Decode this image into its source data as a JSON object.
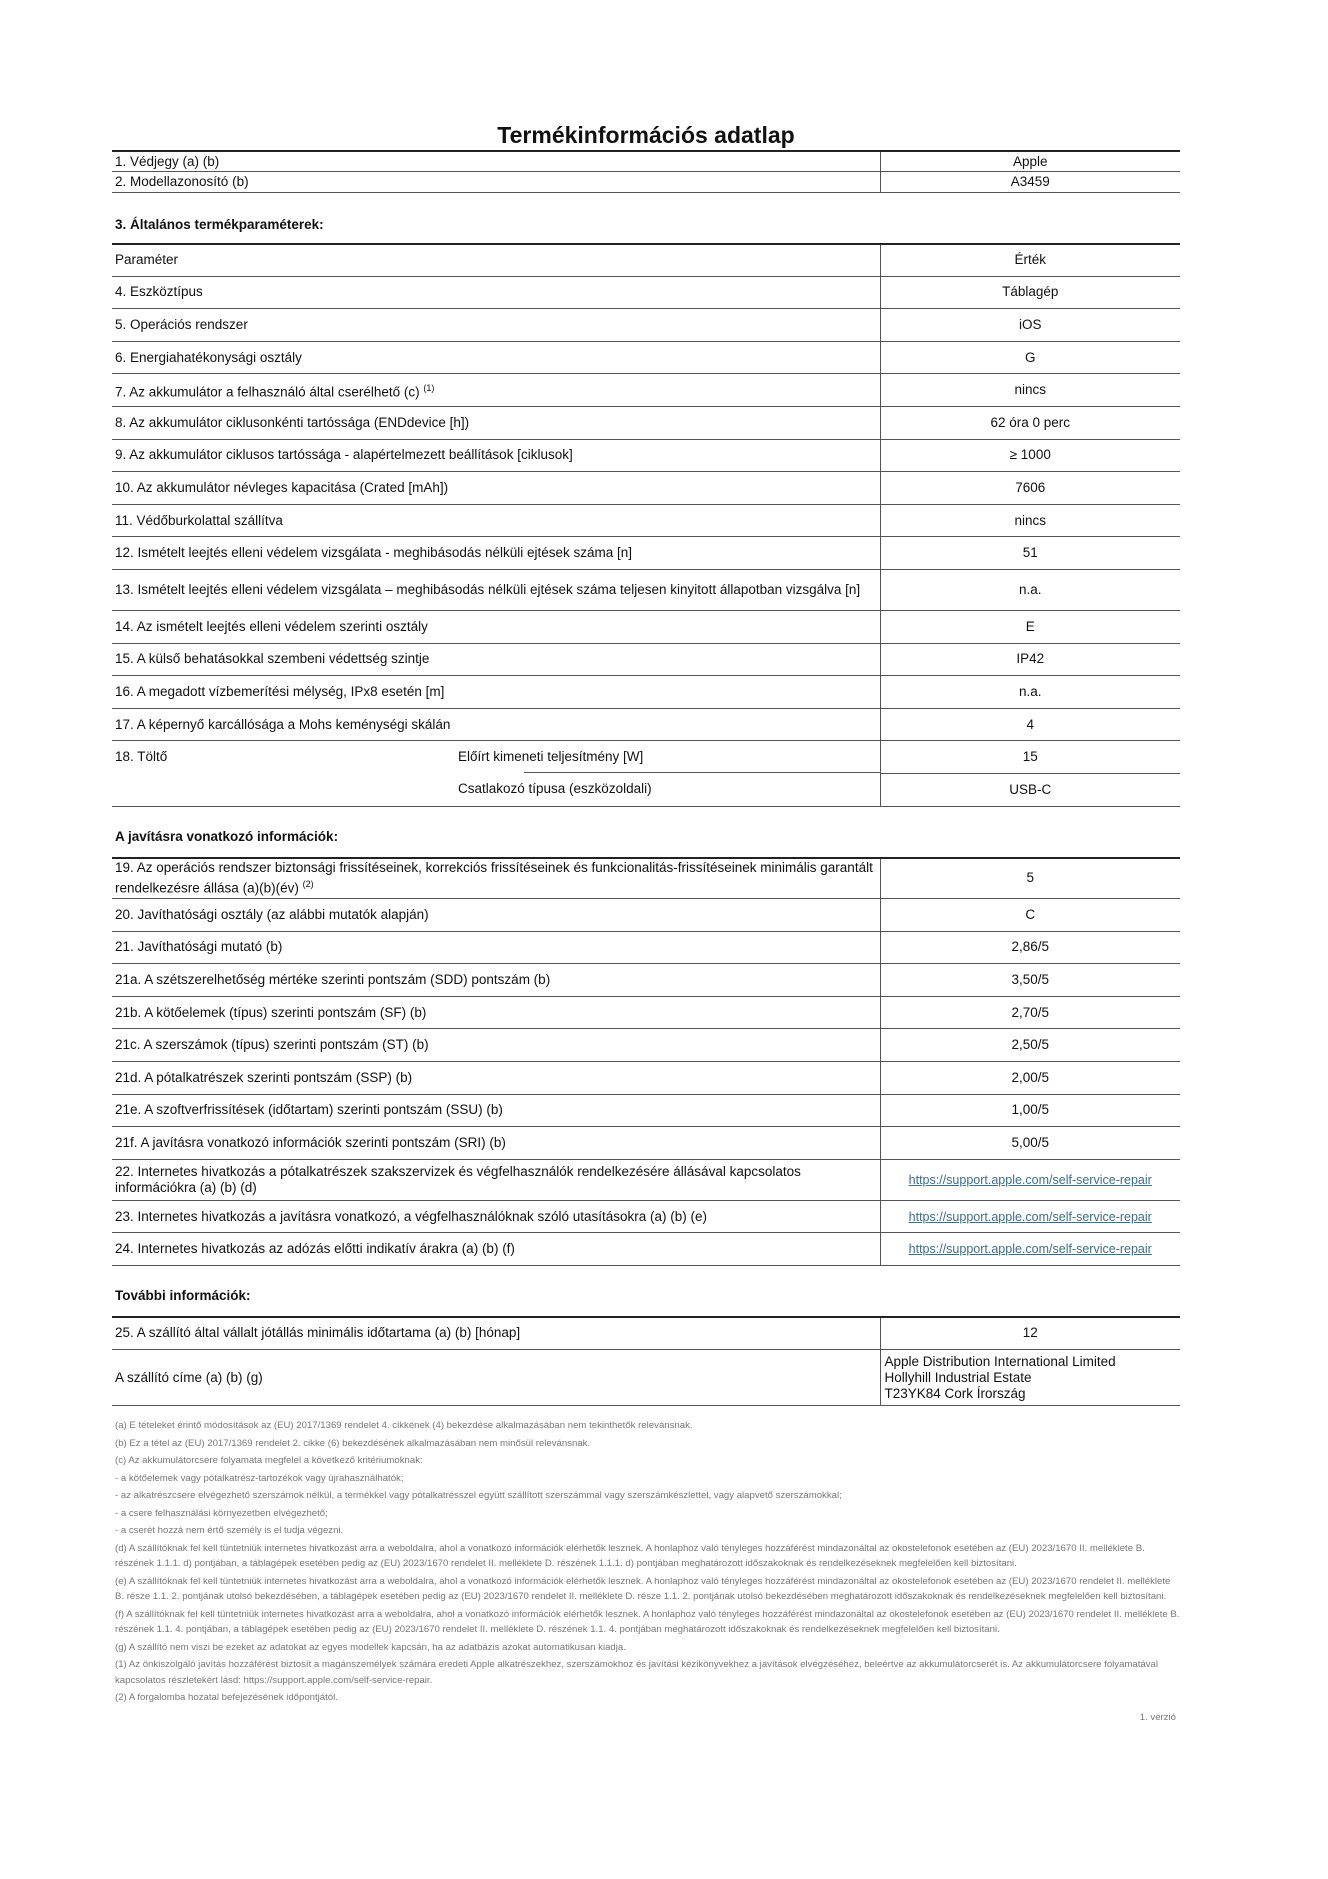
{
  "title": "Termékinformációs adatlap",
  "header_rows": [
    {
      "label": "1. Védjegy (a) (b)",
      "value": "Apple"
    },
    {
      "label": "2. Modellazonosító (b)",
      "value": "A3459"
    }
  ],
  "section3": {
    "heading": "3. Általános termékparaméterek:",
    "col_param": "Paraméter",
    "col_value": "Érték",
    "rows": [
      {
        "label": "4. Eszköztípus",
        "value": "Táblagép"
      },
      {
        "label": "5. Operációs rendszer",
        "value": "iOS"
      },
      {
        "label": "6. Energiahatékonysági osztály",
        "value": "G"
      },
      {
        "label": "7. Az akkumulátor a felhasználó által cserélhető (c)",
        "sup": "(1)",
        "value": "nincs"
      },
      {
        "label": "8. Az akkumulátor ciklusonkénti tartóssága (ENDdevice [h])",
        "value": "62 óra 0 perc"
      },
      {
        "label": "9. Az akkumulátor ciklusos tartóssága - alapértelmezett beállítások [ciklusok]",
        "value": "≥ 1000"
      },
      {
        "label": "10. Az akkumulátor névleges kapacitása (Crated [mAh])",
        "value": "7606"
      },
      {
        "label": "11. Védőburkolattal szállítva",
        "value": "nincs"
      },
      {
        "label": "12. Ismételt leejtés elleni védelem vizsgálata - meghibásodás nélküli ejtések száma [n]",
        "value": "51"
      },
      {
        "label": "13. Ismételt leejtés elleni védelem vizsgálata – meghibásodás nélküli ejtések száma teljesen kinyitott állapotban vizsgálva [n]",
        "value": "n.a."
      },
      {
        "label": "14. Az ismételt leejtés elleni védelem szerinti osztály",
        "value": "E"
      },
      {
        "label": "15. A külső behatásokkal szembeni védettség szintje",
        "value": "IP42"
      },
      {
        "label": "16.  A megadott vízbemerítési mélység, IPx8 esetén [m]",
        "value": "n.a."
      },
      {
        "label": "17. A képernyő karcállósága a Mohs keménységi skálán",
        "value": "4"
      }
    ],
    "charger": {
      "label": "18. Töltő",
      "sub": [
        {
          "label": "Előírt kimeneti teljesítmény [W]",
          "value": "15"
        },
        {
          "label": "Csatlakozó típusa (eszközoldali)",
          "value": "USB-C"
        }
      ]
    }
  },
  "repair": {
    "heading": "A javításra vonatkozó információk:",
    "rows": [
      {
        "label": "19. Az operációs rendszer biztonsági frissítéseinek, korrekciós frissítéseinek és funkcionalitás-frissítéseinek minimális garantált rendelkezésre állása (a)(b)(év)",
        "sup": "(2)",
        "value": "5"
      },
      {
        "label": "20. Javíthatósági osztály (az alábbi mutatók alapján)",
        "value": "C"
      },
      {
        "label": "21. Javíthatósági mutató (b)",
        "value": "2,86/5"
      },
      {
        "label": "21a. A szétszerelhetőség mértéke szerinti pontszám (SDD) pontszám (b)",
        "value": "3,50/5"
      },
      {
        "label": "21b. A kötőelemek (típus) szerinti pontszám (SF) (b)",
        "value": "2,70/5"
      },
      {
        "label": "21c. A szerszámok (típus) szerinti pontszám (ST) (b)",
        "value": "2,50/5"
      },
      {
        "label": "21d. A pótalkatrészek szerinti pontszám (SSP) (b)",
        "value": "2,00/5"
      },
      {
        "label": "21e. A szoftverfrissítések (időtartam) szerinti pontszám (SSU) (b)",
        "value": "1,00/5"
      },
      {
        "label": "21f. A javításra vonatkozó információk szerinti pontszám (SRI) (b)",
        "value": "5,00/5"
      }
    ],
    "links": [
      {
        "label": "22. Internetes hivatkozás a pótalkatrészek szakszervizek és végfelhasználók rendelkezésére állásával kapcsolatos információkra (a) (b) (d)",
        "value": "https://support.apple.com/self-service-repair"
      },
      {
        "label": "23. Internetes hivatkozás a javításra vonatkozó, a végfelhasználóknak szóló utasításokra (a) (b) (e)",
        "value": "https://support.apple.com/self-service-repair"
      },
      {
        "label": "24. Internetes hivatkozás az adózás előtti indikatív árakra (a) (b) (f)",
        "value": "https://support.apple.com/self-service-repair"
      }
    ]
  },
  "more": {
    "heading": "További információk:",
    "warranty": {
      "label": "25. A szállító által vállalt jótállás minimális időtartama (a) (b) [hónap]",
      "value": "12"
    },
    "address": {
      "label": "A szállító címe (a) (b) (g)",
      "lines": [
        "Apple Distribution International Limited",
        "Hollyhill Industrial Estate",
        "T23YK84 Cork Írország"
      ]
    }
  },
  "footnotes": [
    "(a) E tételeket érintő módosítások az (EU) 2017/1369 rendelet 4. cikkének (4) bekezdése alkalmazásában nem tekinthetők relevánsnak.",
    "(b) Ez a tétel az (EU) 2017/1369 rendelet 2. cikke (6) bekezdésének alkalmazásában nem minősül relevánsnak.",
    "(c) Az akkumulátorcsere folyamata megfelel a következő kritériumoknak:",
    "- a kötőelemek vagy pótalkatrész-tartozékok vagy újrahasználhatók;",
    "- az alkatrészcsere elvégezhető szerszámok nélkül, a termékkel vagy pótalkatrésszel együtt szállított szerszámmal vagy szerszámkészlettel, vagy alapvető szerszámokkal;",
    "- a csere felhasználási környezetben elvégezhető;",
    "- a cserét hozzá nem értő személy is el tudja végezni.",
    "(d) A szállítóknak fel kell tüntetniük internetes hivatkozást arra a weboldalra, ahol a vonatkozó információk elérhetők lesznek. A honlaphoz való tényleges hozzáférést mindazonáltal az okostelefonok esetében az (EU) 2023/1670 II. melléklete B. részének 1.1.1. d) pontjában, a táblagépek esetében pedig az (EU) 2023/1670 rendelet II. melléklete D. részének 1.1.1. d) pontjában meghatározott időszakoknak és rendelkezéseknek megfelelően kell biztosítani.",
    "(e) A szállítóknak fel kell tüntetniük internetes hivatkozást arra a weboldalra, ahol a vonatkozó információk elérhetők lesznek. A honlaphoz való tényleges hozzáférést mindazonáltal az okostelefonok esetében az (EU) 2023/1670 rendelet II. melléklete B. része 1.1. 2. pontjának utolsó bekezdésében, a táblagépek esetében pedig az (EU) 2023/1670 rendelet II. melléklete D. része 1.1. 2. pontjának utolsó bekezdésében meghatározott időszakoknak és rendelkezéseknek megfelelően kell biztosítani.",
    "(f) A szállítóknak fel kell tüntetniük internetes hivatkozást arra a weboldalra, ahol a vonatkozó információk elérhetők lesznek. A honlaphoz való tényleges hozzáférést mindazonáltal az okostelefonok esetében az (EU) 2023/1670 rendelet II. melléklete B. részének 1.1. 4. pontjában, a táblagépek esetében pedig az (EU) 2023/1670 rendelet II. melléklete D. részének 1.1. 4. pontjában meghatározott időszakoknak és rendelkezéseknek megfelelően kell biztosítani.",
    "(g) A szállító nem viszi be ezeket az adatokat az egyes modellek kapcsán, ha az adatbázis azokat automatikusan kiadja.",
    "(1) Az önkiszolgáló javítás hozzáférést biztosít a magánszemélyek számára eredeti Apple alkatrészekhez, szerszámokhoz és javítási kézikönyvekhez a javítások elvégzéséhez, beleértve az akkumulátorcserét is. Az akkumulátorcsere folyamatával kapcsolatos részletekért lásd: https://support.apple.com/self-service-repair.",
    "(2) A forgalomba hozatal befejezésének időpontjától."
  ],
  "version": "1. verzió"
}
